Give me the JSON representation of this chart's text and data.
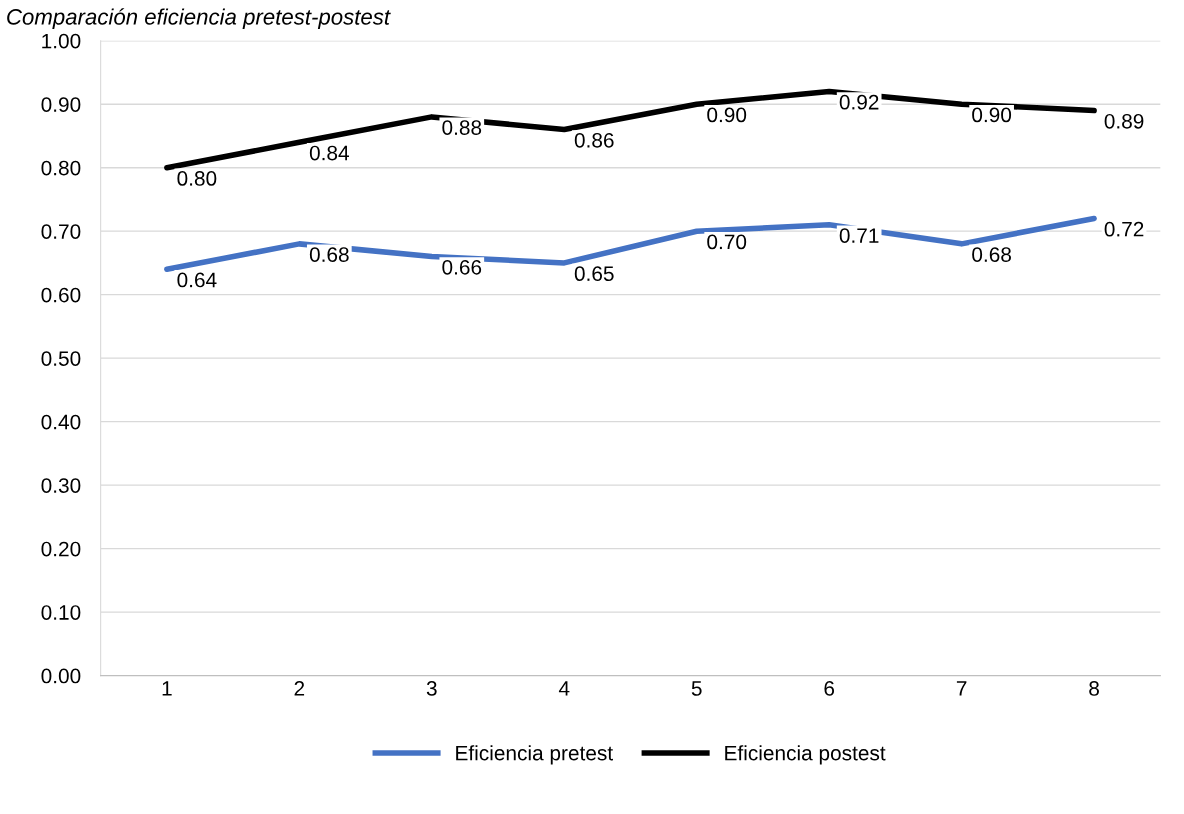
{
  "chart_data": {
    "type": "line",
    "title": "Comparación eficiencia pretest-postest",
    "categories": [
      "1",
      "2",
      "3",
      "4",
      "5",
      "6",
      "7",
      "8"
    ],
    "series": [
      {
        "name": "Eficiencia pretest",
        "color": "#4472c4",
        "values": [
          0.64,
          0.68,
          0.66,
          0.65,
          0.7,
          0.71,
          0.68,
          0.72
        ],
        "value_labels": [
          "0.64",
          "0.68",
          "0.66",
          "0.65",
          "0.70",
          "0.71",
          "0.68",
          "0.72"
        ]
      },
      {
        "name": "Eficiencia postest",
        "color": "#000000",
        "values": [
          0.8,
          0.84,
          0.88,
          0.86,
          0.9,
          0.92,
          0.9,
          0.89
        ],
        "value_labels": [
          "0.80",
          "0.84",
          "0.88",
          "0.86",
          "0.90",
          "0.92",
          "0.90",
          "0.89"
        ]
      }
    ],
    "ylim": [
      0,
      1
    ],
    "yticks": [
      {
        "value": 0,
        "label": "0.00"
      },
      {
        "value": 0.1,
        "label": "0.10"
      },
      {
        "value": 0.2,
        "label": "0.20"
      },
      {
        "value": 0.3,
        "label": "0.30"
      },
      {
        "value": 0.4,
        "label": "0.40"
      },
      {
        "value": 0.5,
        "label": "0.50"
      },
      {
        "value": 0.6,
        "label": "0.60"
      },
      {
        "value": 0.7,
        "label": "0.70"
      },
      {
        "value": 0.8,
        "label": "0.80"
      },
      {
        "value": 0.9,
        "label": "0.90"
      },
      {
        "value": 1,
        "label": "1.00"
      }
    ],
    "grid": "y",
    "legend": "bottom",
    "marker": "none",
    "line_style": "solid"
  }
}
